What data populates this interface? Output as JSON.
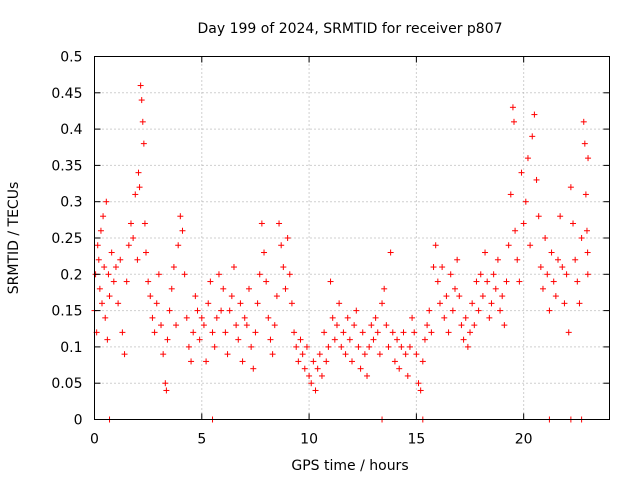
{
  "chart_data": {
    "type": "scatter",
    "title": "Day 199 of 2024, SRMTID for receiver p807",
    "xlabel": "GPS time / hours",
    "ylabel": "SRMTID / TECUs",
    "xlim": [
      0,
      24
    ],
    "ylim": [
      0,
      0.5
    ],
    "xticks": [
      "0",
      "5",
      "10",
      "15",
      "20"
    ],
    "xtick_values": [
      0,
      5,
      10,
      15,
      20
    ],
    "yticks": [
      "0",
      "0.05",
      "0.1",
      "0.15",
      "0.2",
      "0.25",
      "0.3",
      "0.35",
      "0.4",
      "0.45",
      "0.5"
    ],
    "ytick_values": [
      0,
      0.05,
      0.1,
      0.15,
      0.2,
      0.25,
      0.3,
      0.35,
      0.4,
      0.45,
      0.5
    ],
    "grid": true,
    "marker": "+",
    "series": [
      {
        "name": "SRMTID",
        "color": "#ff0000",
        "points": [
          [
            0.0,
            0.15
          ],
          [
            0.05,
            0.2
          ],
          [
            0.1,
            0.12
          ],
          [
            0.15,
            0.24
          ],
          [
            0.2,
            0.22
          ],
          [
            0.25,
            0.18
          ],
          [
            0.3,
            0.26
          ],
          [
            0.35,
            0.16
          ],
          [
            0.4,
            0.28
          ],
          [
            0.45,
            0.21
          ],
          [
            0.5,
            0.14
          ],
          [
            0.55,
            0.3
          ],
          [
            0.6,
            0.11
          ],
          [
            0.65,
            0.2
          ],
          [
            0.7,
            0.17
          ],
          [
            0.8,
            0.23
          ],
          [
            0.9,
            0.19
          ],
          [
            1.0,
            0.21
          ],
          [
            1.1,
            0.16
          ],
          [
            1.2,
            0.22
          ],
          [
            1.3,
            0.12
          ],
          [
            1.4,
            0.09
          ],
          [
            1.5,
            0.19
          ],
          [
            1.6,
            0.24
          ],
          [
            1.7,
            0.27
          ],
          [
            1.8,
            0.25
          ],
          [
            1.9,
            0.31
          ],
          [
            2.0,
            0.22
          ],
          [
            2.05,
            0.34
          ],
          [
            2.1,
            0.32
          ],
          [
            2.15,
            0.46
          ],
          [
            2.2,
            0.44
          ],
          [
            2.25,
            0.41
          ],
          [
            2.3,
            0.38
          ],
          [
            2.35,
            0.27
          ],
          [
            2.4,
            0.23
          ],
          [
            2.5,
            0.19
          ],
          [
            2.6,
            0.17
          ],
          [
            2.7,
            0.14
          ],
          [
            2.8,
            0.12
          ],
          [
            2.9,
            0.16
          ],
          [
            3.0,
            0.2
          ],
          [
            3.1,
            0.13
          ],
          [
            3.2,
            0.09
          ],
          [
            3.3,
            0.05
          ],
          [
            3.35,
            0.04
          ],
          [
            3.4,
            0.11
          ],
          [
            3.5,
            0.15
          ],
          [
            3.6,
            0.18
          ],
          [
            3.7,
            0.21
          ],
          [
            3.8,
            0.13
          ],
          [
            3.9,
            0.24
          ],
          [
            4.0,
            0.28
          ],
          [
            4.1,
            0.26
          ],
          [
            4.2,
            0.2
          ],
          [
            4.3,
            0.14
          ],
          [
            4.4,
            0.1
          ],
          [
            4.5,
            0.08
          ],
          [
            4.6,
            0.12
          ],
          [
            4.7,
            0.17
          ],
          [
            4.8,
            0.15
          ],
          [
            4.9,
            0.11
          ],
          [
            5.0,
            0.14
          ],
          [
            5.1,
            0.13
          ],
          [
            5.2,
            0.08
          ],
          [
            5.3,
            0.16
          ],
          [
            5.4,
            0.19
          ],
          [
            5.5,
            0.12
          ],
          [
            5.6,
            0.1
          ],
          [
            5.7,
            0.14
          ],
          [
            5.8,
            0.2
          ],
          [
            5.9,
            0.15
          ],
          [
            6.0,
            0.18
          ],
          [
            6.1,
            0.12
          ],
          [
            6.2,
            0.09
          ],
          [
            6.3,
            0.15
          ],
          [
            6.4,
            0.17
          ],
          [
            6.5,
            0.21
          ],
          [
            6.6,
            0.13
          ],
          [
            6.7,
            0.11
          ],
          [
            6.8,
            0.16
          ],
          [
            6.9,
            0.08
          ],
          [
            7.0,
            0.14
          ],
          [
            7.1,
            0.13
          ],
          [
            7.2,
            0.18
          ],
          [
            7.3,
            0.1
          ],
          [
            7.4,
            0.07
          ],
          [
            7.5,
            0.12
          ],
          [
            7.6,
            0.16
          ],
          [
            7.7,
            0.2
          ],
          [
            7.8,
            0.27
          ],
          [
            7.9,
            0.23
          ],
          [
            8.0,
            0.19
          ],
          [
            8.1,
            0.14
          ],
          [
            8.2,
            0.11
          ],
          [
            8.3,
            0.09
          ],
          [
            8.4,
            0.13
          ],
          [
            8.5,
            0.17
          ],
          [
            8.6,
            0.27
          ],
          [
            8.7,
            0.24
          ],
          [
            8.8,
            0.21
          ],
          [
            8.9,
            0.18
          ],
          [
            9.0,
            0.25
          ],
          [
            9.1,
            0.2
          ],
          [
            9.2,
            0.16
          ],
          [
            9.3,
            0.12
          ],
          [
            9.4,
            0.1
          ],
          [
            9.5,
            0.08
          ],
          [
            9.6,
            0.11
          ],
          [
            9.7,
            0.09
          ],
          [
            9.8,
            0.07
          ],
          [
            9.9,
            0.1
          ],
          [
            10.0,
            0.06
          ],
          [
            10.1,
            0.05
          ],
          [
            10.2,
            0.08
          ],
          [
            10.3,
            0.04
          ],
          [
            10.4,
            0.07
          ],
          [
            10.5,
            0.09
          ],
          [
            10.6,
            0.06
          ],
          [
            10.7,
            0.12
          ],
          [
            10.8,
            0.08
          ],
          [
            10.9,
            0.1
          ],
          [
            11.0,
            0.19
          ],
          [
            11.1,
            0.14
          ],
          [
            11.2,
            0.11
          ],
          [
            11.3,
            0.13
          ],
          [
            11.4,
            0.16
          ],
          [
            11.5,
            0.1
          ],
          [
            11.6,
            0.12
          ],
          [
            11.7,
            0.09
          ],
          [
            11.8,
            0.14
          ],
          [
            11.9,
            0.11
          ],
          [
            12.0,
            0.08
          ],
          [
            12.1,
            0.13
          ],
          [
            12.2,
            0.15
          ],
          [
            12.3,
            0.1
          ],
          [
            12.4,
            0.07
          ],
          [
            12.5,
            0.12
          ],
          [
            12.6,
            0.09
          ],
          [
            12.7,
            0.06
          ],
          [
            12.8,
            0.1
          ],
          [
            12.9,
            0.13
          ],
          [
            13.0,
            0.11
          ],
          [
            13.1,
            0.14
          ],
          [
            13.2,
            0.12
          ],
          [
            13.3,
            0.09
          ],
          [
            13.4,
            0.16
          ],
          [
            13.5,
            0.18
          ],
          [
            13.6,
            0.13
          ],
          [
            13.7,
            0.1
          ],
          [
            13.8,
            0.23
          ],
          [
            13.9,
            0.12
          ],
          [
            14.0,
            0.08
          ],
          [
            14.1,
            0.11
          ],
          [
            14.2,
            0.07
          ],
          [
            14.3,
            0.1
          ],
          [
            14.4,
            0.12
          ],
          [
            14.5,
            0.09
          ],
          [
            14.6,
            0.06
          ],
          [
            14.7,
            0.1
          ],
          [
            14.8,
            0.14
          ],
          [
            14.9,
            0.12
          ],
          [
            15.0,
            0.09
          ],
          [
            15.1,
            0.05
          ],
          [
            15.2,
            0.04
          ],
          [
            15.3,
            0.08
          ],
          [
            15.4,
            0.11
          ],
          [
            15.5,
            0.13
          ],
          [
            15.6,
            0.15
          ],
          [
            15.7,
            0.12
          ],
          [
            15.8,
            0.21
          ],
          [
            15.9,
            0.24
          ],
          [
            16.0,
            0.19
          ],
          [
            16.1,
            0.16
          ],
          [
            16.2,
            0.21
          ],
          [
            16.3,
            0.14
          ],
          [
            16.4,
            0.17
          ],
          [
            16.5,
            0.12
          ],
          [
            16.6,
            0.2
          ],
          [
            16.7,
            0.15
          ],
          [
            16.8,
            0.18
          ],
          [
            16.9,
            0.22
          ],
          [
            17.0,
            0.17
          ],
          [
            17.1,
            0.13
          ],
          [
            17.2,
            0.11
          ],
          [
            17.3,
            0.14
          ],
          [
            17.4,
            0.1
          ],
          [
            17.5,
            0.12
          ],
          [
            17.6,
            0.16
          ],
          [
            17.7,
            0.13
          ],
          [
            17.8,
            0.19
          ],
          [
            17.9,
            0.15
          ],
          [
            18.0,
            0.2
          ],
          [
            18.1,
            0.17
          ],
          [
            18.2,
            0.23
          ],
          [
            18.3,
            0.19
          ],
          [
            18.4,
            0.14
          ],
          [
            18.5,
            0.16
          ],
          [
            18.6,
            0.2
          ],
          [
            18.7,
            0.18
          ],
          [
            18.8,
            0.22
          ],
          [
            18.9,
            0.15
          ],
          [
            19.0,
            0.17
          ],
          [
            19.1,
            0.13
          ],
          [
            19.2,
            0.19
          ],
          [
            19.3,
            0.24
          ],
          [
            19.4,
            0.31
          ],
          [
            19.5,
            0.43
          ],
          [
            19.55,
            0.41
          ],
          [
            19.6,
            0.26
          ],
          [
            19.7,
            0.22
          ],
          [
            19.8,
            0.19
          ],
          [
            19.9,
            0.34
          ],
          [
            20.0,
            0.27
          ],
          [
            20.1,
            0.3
          ],
          [
            20.2,
            0.36
          ],
          [
            20.3,
            0.24
          ],
          [
            20.4,
            0.39
          ],
          [
            20.5,
            0.42
          ],
          [
            20.6,
            0.33
          ],
          [
            20.7,
            0.28
          ],
          [
            20.8,
            0.21
          ],
          [
            20.9,
            0.18
          ],
          [
            21.0,
            0.25
          ],
          [
            21.1,
            0.2
          ],
          [
            21.2,
            0.15
          ],
          [
            21.3,
            0.23
          ],
          [
            21.4,
            0.19
          ],
          [
            21.5,
            0.17
          ],
          [
            21.6,
            0.22
          ],
          [
            21.7,
            0.28
          ],
          [
            21.8,
            0.21
          ],
          [
            21.9,
            0.16
          ],
          [
            22.0,
            0.2
          ],
          [
            22.1,
            0.12
          ],
          [
            22.2,
            0.32
          ],
          [
            22.3,
            0.27
          ],
          [
            22.4,
            0.22
          ],
          [
            22.5,
            0.19
          ],
          [
            22.6,
            0.16
          ],
          [
            22.7,
            0.25
          ],
          [
            22.8,
            0.41
          ],
          [
            22.85,
            0.38
          ],
          [
            22.9,
            0.31
          ],
          [
            22.95,
            0.26
          ],
          [
            22.98,
            0.23
          ],
          [
            22.99,
            0.2
          ],
          [
            23.0,
            0.36
          ]
        ]
      }
    ],
    "zero_points_x": [
      0.7,
      5.5,
      13.4,
      15.3,
      21.2,
      22.2,
      22.7
    ]
  }
}
